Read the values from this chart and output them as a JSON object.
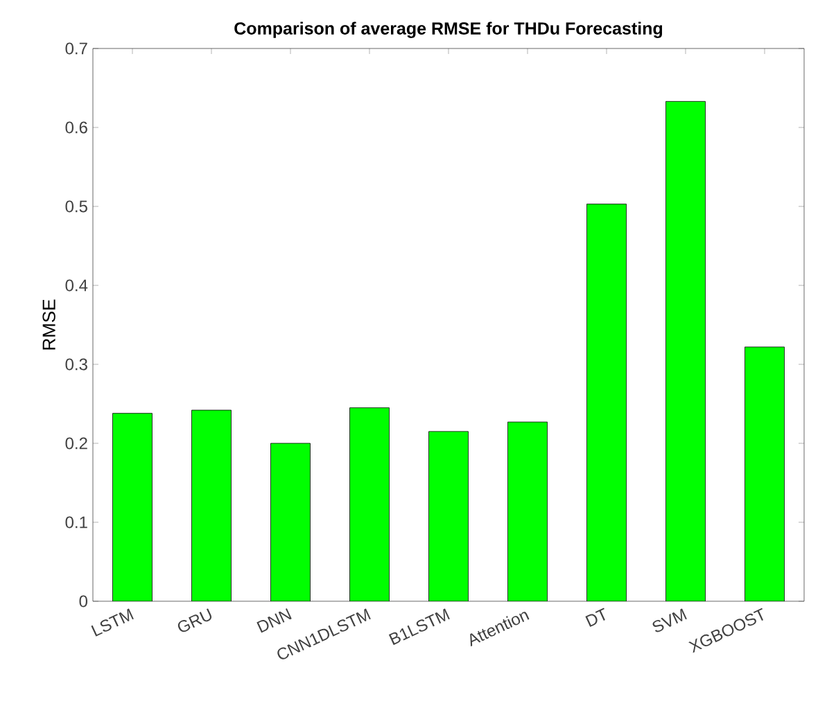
{
  "chart_data": {
    "type": "bar",
    "title": "Comparison of average RMSE for THDu Forecasting",
    "ylabel": "RMSE",
    "categories": [
      "LSTM",
      "GRU",
      "DNN",
      "CNN1DLSTM",
      "B1LSTM",
      "Attention",
      "DT",
      "SVM",
      "XGBOOST"
    ],
    "values": [
      0.238,
      0.242,
      0.2,
      0.245,
      0.215,
      0.227,
      0.503,
      0.633,
      0.322
    ],
    "color": "#00ff00",
    "ylim": [
      0,
      0.7
    ],
    "yticks": [
      0,
      0.1,
      0.2,
      0.3,
      0.4,
      0.5,
      0.6,
      0.7
    ]
  }
}
